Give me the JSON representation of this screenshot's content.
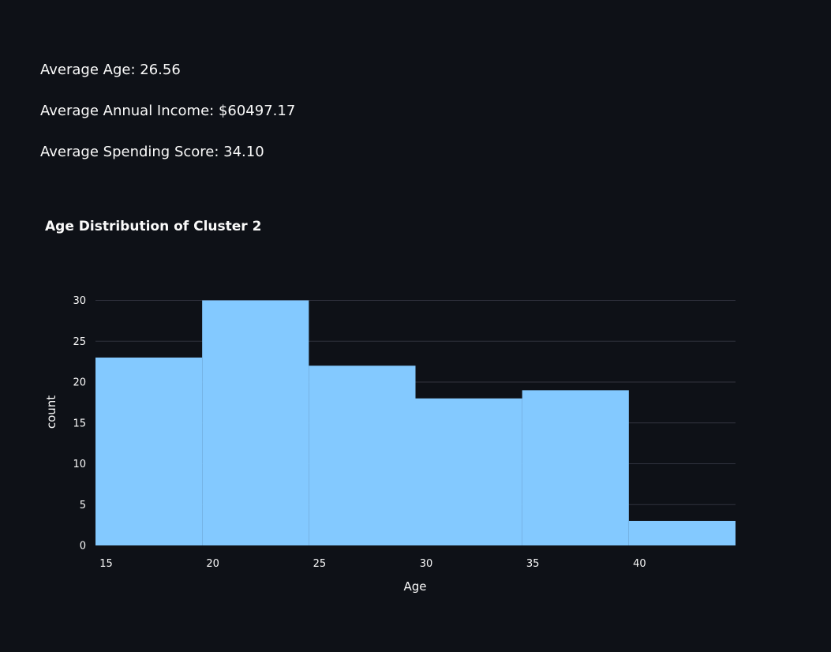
{
  "summary": {
    "avg_age": "Average Age: 26.56",
    "avg_income": "Average Annual Income: $60497.17",
    "avg_spending": "Average Spending Score: 34.10"
  },
  "colors": {
    "background": "#0e1117",
    "bar": "#83c9ff",
    "grid": "#31333f",
    "text": "#fafafa"
  },
  "chart_data": {
    "type": "bar",
    "title": "Age Distribution of Cluster 2",
    "xlabel": "Age",
    "ylabel": "count",
    "bins": [
      {
        "start": 14.5,
        "end": 19.5,
        "count": 23
      },
      {
        "start": 19.5,
        "end": 24.5,
        "count": 30
      },
      {
        "start": 24.5,
        "end": 29.5,
        "count": 22
      },
      {
        "start": 29.5,
        "end": 34.5,
        "count": 18
      },
      {
        "start": 34.5,
        "end": 39.5,
        "count": 19
      },
      {
        "start": 39.5,
        "end": 44.5,
        "count": 3
      }
    ],
    "xlim": [
      14.5,
      44.5
    ],
    "ylim": [
      0,
      31.5
    ],
    "xticks": [
      15,
      20,
      25,
      30,
      35,
      40
    ],
    "yticks": [
      0,
      5,
      10,
      15,
      20,
      25,
      30
    ],
    "grid": true,
    "legend": false
  }
}
